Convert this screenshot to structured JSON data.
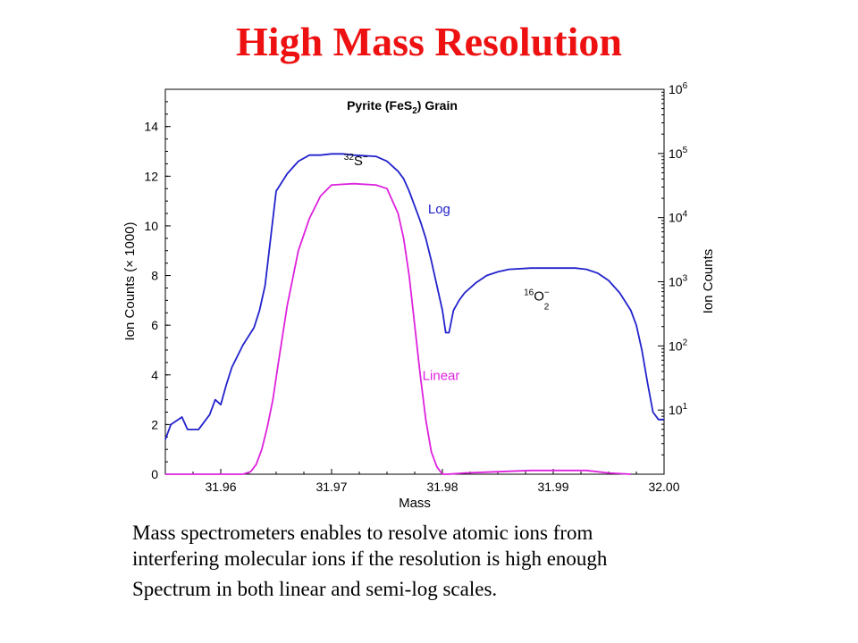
{
  "slide": {
    "title": "High Mass Resolution",
    "caption_lines": [
      "Mass spectrometers enables to resolve atomic ions from",
      "interfering molecular ions if the resolution is high enough",
      "Spectrum in both linear and semi-log scales."
    ]
  },
  "chart_data": {
    "type": "line",
    "title": "Pyrite (FeS₂) Grain",
    "xlabel": "Mass",
    "ylabel": "Ion Counts (× 1000)",
    "y2label": "Ion Counts",
    "xlim": [
      31.955,
      32.0
    ],
    "ylim": [
      0,
      15.5
    ],
    "y2scale": "log",
    "y2lim": [
      1,
      1000000
    ],
    "x_ticks": [
      31.96,
      31.97,
      31.98,
      31.99,
      32.0
    ],
    "x_tick_labels": [
      "31.96",
      "31.97",
      "31.98",
      "31.99",
      "32.00"
    ],
    "y_ticks": [
      0,
      2,
      4,
      6,
      8,
      10,
      12,
      14
    ],
    "y_tick_labels": [
      "0",
      "2",
      "4",
      "6",
      "8",
      "10",
      "12",
      "14"
    ],
    "y2_ticks": [
      10,
      100,
      1000,
      10000,
      100000,
      1000000
    ],
    "y2_tick_labels": [
      {
        "base": "10",
        "exp": "1"
      },
      {
        "base": "10",
        "exp": "2"
      },
      {
        "base": "10",
        "exp": "3"
      },
      {
        "base": "10",
        "exp": "4"
      },
      {
        "base": "10",
        "exp": "5"
      },
      {
        "base": "10",
        "exp": "6"
      }
    ],
    "grid": false,
    "series": [
      {
        "name": "Log",
        "color": "#2222cc",
        "x": [
          31.955,
          31.9555,
          31.9565,
          31.957,
          31.958,
          31.9585,
          31.959,
          31.9595,
          31.96,
          31.9605,
          31.961,
          31.962,
          31.963,
          31.9635,
          31.964,
          31.9645,
          31.965,
          31.966,
          31.967,
          31.968,
          31.969,
          31.97,
          31.971,
          31.972,
          31.974,
          31.975,
          31.9755,
          31.976,
          31.9765,
          31.977,
          31.9775,
          31.978,
          31.9785,
          31.979,
          31.9795,
          31.98,
          31.9803,
          31.9806,
          31.981,
          31.9815,
          31.982,
          31.983,
          31.984,
          31.985,
          31.986,
          31.988,
          31.99,
          31.992,
          31.993,
          31.994,
          31.995,
          31.996,
          31.997,
          31.9975,
          31.998,
          31.9985,
          31.999,
          31.9995,
          32.0
        ],
        "y": [
          1.4,
          2.0,
          2.3,
          1.8,
          1.8,
          2.1,
          2.4,
          3.0,
          2.8,
          3.6,
          4.3,
          5.2,
          5.9,
          6.6,
          7.6,
          9.5,
          11.4,
          12.1,
          12.6,
          12.85,
          12.85,
          12.9,
          12.9,
          12.85,
          12.8,
          12.6,
          12.4,
          12.2,
          11.9,
          11.4,
          10.8,
          10.2,
          9.5,
          8.6,
          7.6,
          6.6,
          5.7,
          5.7,
          6.6,
          7.0,
          7.3,
          7.7,
          8.0,
          8.15,
          8.25,
          8.3,
          8.3,
          8.3,
          8.25,
          8.1,
          7.8,
          7.3,
          6.6,
          6.0,
          5.0,
          3.7,
          2.5,
          2.2,
          2.2
        ]
      },
      {
        "name": "Linear",
        "color": "#dd22dd",
        "x": [
          31.955,
          31.962,
          31.9627,
          31.9632,
          31.9637,
          31.9642,
          31.9647,
          31.9652,
          31.966,
          31.967,
          31.968,
          31.969,
          31.97,
          31.972,
          31.974,
          31.975,
          31.976,
          31.9765,
          31.977,
          31.9775,
          31.978,
          31.9785,
          31.979,
          31.9795,
          31.98,
          31.9805,
          31.982,
          31.985,
          31.988,
          31.991,
          31.993,
          31.995,
          31.997
        ],
        "y": [
          0,
          0,
          0.1,
          0.4,
          1.0,
          1.9,
          3.0,
          4.5,
          6.8,
          9.0,
          10.3,
          11.2,
          11.65,
          11.7,
          11.65,
          11.5,
          10.5,
          9.5,
          8.0,
          6.0,
          4.0,
          2.2,
          0.9,
          0.3,
          0.0,
          0.0,
          0.05,
          0.1,
          0.15,
          0.15,
          0.15,
          0.05,
          0.0
        ]
      }
    ],
    "annotations": [
      {
        "id": "s32",
        "pre_sup": "32",
        "base": "S",
        "post_sup": "−",
        "post_sub": "",
        "x": 31.9722,
        "y": 12.45
      },
      {
        "id": "o16",
        "pre_sup": "16",
        "base": "O",
        "post_sup": "−",
        "post_sub": "2",
        "x": 31.9885,
        "y": 7.0
      }
    ],
    "series_labels": [
      {
        "text": "Log",
        "x": 31.9787,
        "y": 10.5
      },
      {
        "text": "Linear",
        "x": 31.9782,
        "y": 3.8
      }
    ]
  }
}
